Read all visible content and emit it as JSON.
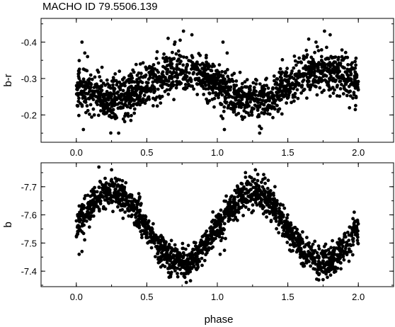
{
  "title": "MACHO ID 79.5506.139",
  "chart_data": [
    {
      "type": "scatter",
      "panel": "top",
      "xlabel": "",
      "ylabel": "b-r",
      "xlim": [
        -0.25,
        2.25
      ],
      "ylim": [
        -0.125,
        -0.465
      ],
      "y_inverted": true,
      "xticks": [
        0.0,
        0.5,
        1.0,
        1.5,
        2.0
      ],
      "xtick_labels": [
        "0.0",
        "0.5",
        "1.0",
        "1.5",
        "2.0"
      ],
      "yticks": [
        -0.4,
        -0.3,
        -0.2
      ],
      "ytick_labels": [
        "-0.4",
        "-0.3",
        "-0.2"
      ],
      "marker_color": "#000000",
      "grid": false,
      "model": {
        "period_in_phase": 1.0,
        "mean": -0.283,
        "amplitude": 0.04,
        "peak_phase": 0.75,
        "scatter": 0.028,
        "points": 1700
      },
      "outliers": [
        {
          "x": 0.04,
          "y": -0.4
        },
        {
          "x": 0.06,
          "y": -0.37
        },
        {
          "x": 0.08,
          "y": -0.36
        },
        {
          "x": 0.76,
          "y": -0.43
        },
        {
          "x": 0.82,
          "y": -0.42
        },
        {
          "x": 0.7,
          "y": -0.4
        },
        {
          "x": 1.04,
          "y": -0.4
        },
        {
          "x": 1.07,
          "y": -0.37
        },
        {
          "x": 1.76,
          "y": -0.43
        },
        {
          "x": 1.8,
          "y": -0.42
        },
        {
          "x": 1.7,
          "y": -0.4
        },
        {
          "x": 0.3,
          "y": -0.15
        },
        {
          "x": 1.3,
          "y": -0.15
        },
        {
          "x": 0.05,
          "y": -0.16
        },
        {
          "x": 1.05,
          "y": -0.16
        }
      ]
    },
    {
      "type": "scatter",
      "panel": "bottom",
      "xlabel": "phase",
      "ylabel": "b",
      "xlim": [
        -0.25,
        2.25
      ],
      "ylim": [
        -7.345,
        -7.785
      ],
      "y_inverted": true,
      "xticks": [
        0.0,
        0.5,
        1.0,
        1.5,
        2.0
      ],
      "xtick_labels": [
        "0.0",
        "0.5",
        "1.0",
        "1.5",
        "2.0"
      ],
      "yticks": [
        -7.7,
        -7.6,
        -7.5,
        -7.4
      ],
      "ytick_labels": [
        "-7.7",
        "-7.6",
        "-7.5",
        "-7.4"
      ],
      "marker_color": "#000000",
      "grid": false,
      "model": {
        "period_in_phase": 1.0,
        "mean": -7.555,
        "amplitude": 0.125,
        "peak_phase": 0.25,
        "scatter": 0.028,
        "points": 1700
      },
      "outliers": [
        {
          "x": 0.16,
          "y": -7.77
        },
        {
          "x": 0.25,
          "y": -7.76
        },
        {
          "x": 1.27,
          "y": -7.76
        },
        {
          "x": 1.2,
          "y": -7.75
        },
        {
          "x": 0.02,
          "y": -7.46
        },
        {
          "x": 0.04,
          "y": -7.47
        },
        {
          "x": 1.02,
          "y": -7.46
        },
        {
          "x": 0.78,
          "y": -7.36
        },
        {
          "x": 1.75,
          "y": -7.37
        },
        {
          "x": 0.72,
          "y": -7.38
        }
      ]
    }
  ]
}
